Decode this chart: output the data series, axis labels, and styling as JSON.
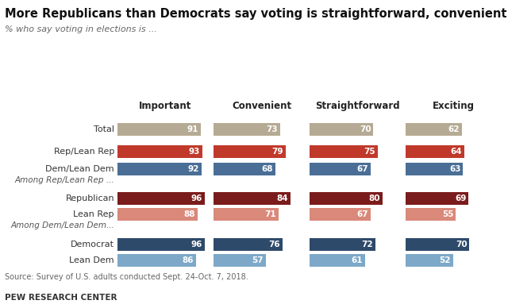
{
  "title": "More Republicans than Democrats say voting is straightforward, convenient",
  "subtitle": "% who say voting in elections is ...",
  "source": "Source: Survey of U.S. adults conducted Sept. 24-Oct. 7, 2018.",
  "footer": "PEW RESEARCH CENTER",
  "columns": [
    "Important",
    "Convenient",
    "Straightforward",
    "Exciting"
  ],
  "rows": [
    {
      "label": "Total",
      "group": "total",
      "values": [
        91,
        73,
        70,
        62
      ],
      "color": "#b5aa94"
    },
    {
      "label": "Rep/Lean Rep",
      "group": "lean",
      "values": [
        93,
        79,
        75,
        64
      ],
      "color": "#c0392b"
    },
    {
      "label": "Dem/Lean Dem",
      "group": "lean",
      "values": [
        92,
        68,
        67,
        63
      ],
      "color": "#4a6e96"
    },
    {
      "label": "Republican",
      "group": "rep_sub",
      "values": [
        96,
        84,
        80,
        69
      ],
      "color": "#7b1c1c"
    },
    {
      "label": "Lean Rep",
      "group": "rep_sub",
      "values": [
        88,
        71,
        67,
        55
      ],
      "color": "#d9887a"
    },
    {
      "label": "Democrat",
      "group": "dem_sub",
      "values": [
        96,
        76,
        72,
        70
      ],
      "color": "#2e4a6b"
    },
    {
      "label": "Lean Dem",
      "group": "dem_sub",
      "values": [
        86,
        57,
        61,
        52
      ],
      "color": "#7da8c8"
    }
  ],
  "section_rep_label": "Among Rep/Lean Rep ...",
  "section_dem_label": "Among Dem/Lean Dem...",
  "background_color": "#ffffff"
}
